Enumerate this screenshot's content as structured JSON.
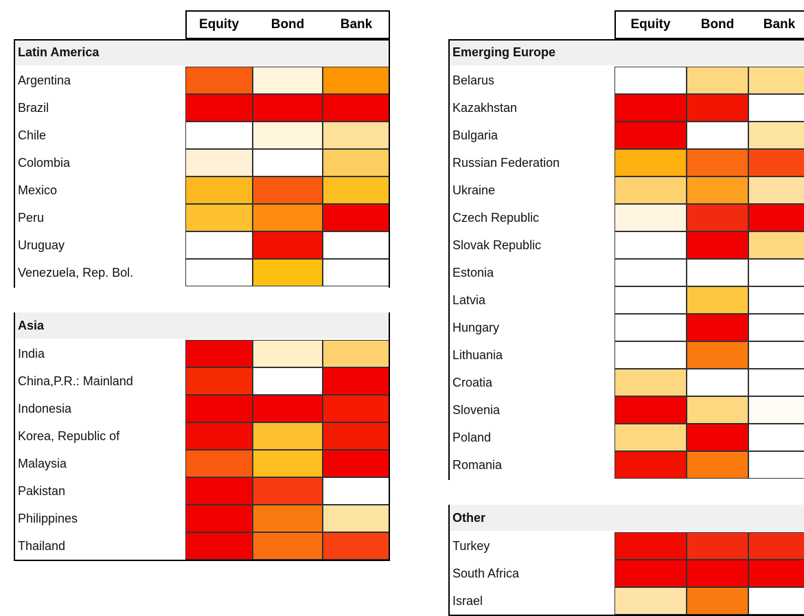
{
  "tables": [
    {
      "columns": [
        "Equity",
        "Bond",
        "Bank"
      ],
      "groups": [
        {
          "name": "Latin America",
          "rows": [
            {
              "label": "Argentina",
              "colors": [
                "#f95d10",
                "#fff4dc",
                "#fd9500"
              ]
            },
            {
              "label": "Brazil",
              "colors": [
                "#f20000",
                "#f20000",
                "#f20000"
              ]
            },
            {
              "label": "Chile",
              "colors": [
                "#ffffff",
                "#fff4dc",
                "#fde09a"
              ]
            },
            {
              "label": "Colombia",
              "colors": [
                "#fff0d8",
                "#ffffff",
                "#fdcd60"
              ]
            },
            {
              "label": "Mexico",
              "colors": [
                "#fdb820",
                "#f95a10",
                "#fdc020"
              ]
            },
            {
              "label": "Peru",
              "colors": [
                "#fdc030",
                "#fd8c10",
                "#f20000"
              ]
            },
            {
              "label": "Uruguay",
              "colors": [
                "#ffffff",
                "#f21000",
                "#ffffff"
              ]
            },
            {
              "label": "Venezuela, Rep. Bol.",
              "colors": [
                "#ffffff",
                "#fdc010",
                "#ffffff"
              ]
            }
          ]
        },
        {
          "name": "Asia",
          "rows": [
            {
              "label": "India",
              "colors": [
                "#f20000",
                "#fff0c8",
                "#fdd070"
              ]
            },
            {
              "label": "China,P.R.: Mainland",
              "colors": [
                "#f52a00",
                "#ffffff",
                "#f20000"
              ]
            },
            {
              "label": "Indonesia",
              "colors": [
                "#f20000",
                "#f20000",
                "#f51a00"
              ]
            },
            {
              "label": "Korea, Republic of",
              "colors": [
                "#f20a00",
                "#fdc030",
                "#f21a00"
              ]
            },
            {
              "label": "Malaysia",
              "colors": [
                "#f95a10",
                "#fdc020",
                "#f20000"
              ]
            },
            {
              "label": "Pakistan",
              "colors": [
                "#f20000",
                "#f83a10",
                "#ffffff"
              ]
            },
            {
              "label": "Philippines",
              "colors": [
                "#f20000",
                "#fa7a10",
                "#fde3a0"
              ]
            },
            {
              "label": "Thailand",
              "colors": [
                "#f20000",
                "#fa7010",
                "#f84010"
              ]
            }
          ]
        }
      ]
    },
    {
      "columns": [
        "Equity",
        "Bond",
        "Bank"
      ],
      "groups": [
        {
          "name": "Emerging Europe",
          "rows": [
            {
              "label": "Belarus",
              "colors": [
                "#ffffff",
                "#fdd880",
                "#fddc8a"
              ]
            },
            {
              "label": "Kazakhstan",
              "colors": [
                "#f20000",
                "#f21500",
                "#ffffff"
              ]
            },
            {
              "label": "Bulgaria",
              "colors": [
                "#f20000",
                "#ffffff",
                "#fde3a0"
              ]
            },
            {
              "label": "Russian Federation",
              "colors": [
                "#fdb010",
                "#fa6a10",
                "#f84a10"
              ]
            },
            {
              "label": "Ukraine",
              "colors": [
                "#fdd070",
                "#fda020",
                "#fde0a0"
              ]
            },
            {
              "label": "Czech Republic",
              "colors": [
                "#fff4e0",
                "#f22a10",
                "#f20000"
              ]
            },
            {
              "label": "Slovak Republic",
              "colors": [
                "#ffffff",
                "#f20000",
                "#fdd880"
              ]
            },
            {
              "label": "Estonia",
              "colors": [
                "#ffffff",
                "#ffffff",
                "#ffffff"
              ]
            },
            {
              "label": "Latvia",
              "colors": [
                "#ffffff",
                "#fdc840",
                "#ffffff"
              ]
            },
            {
              "label": "Hungary",
              "colors": [
                "#ffffff",
                "#f20000",
                "#ffffff"
              ]
            },
            {
              "label": "Lithuania",
              "colors": [
                "#ffffff",
                "#fa7a10",
                "#ffffff"
              ]
            },
            {
              "label": "Croatia",
              "colors": [
                "#fdd880",
                "#ffffff",
                "#ffffff"
              ]
            },
            {
              "label": "Slovenia",
              "colors": [
                "#f20000",
                "#fdd880",
                "#fffbf5"
              ]
            },
            {
              "label": "Poland",
              "colors": [
                "#fdd880",
                "#f20000",
                "#ffffff"
              ]
            },
            {
              "label": "Romania",
              "colors": [
                "#f21000",
                "#fa7a10",
                "#ffffff"
              ]
            }
          ]
        },
        {
          "name": "Other",
          "rows": [
            {
              "label": "Turkey",
              "colors": [
                "#f20a00",
                "#f22a10",
                "#f22a10"
              ]
            },
            {
              "label": "South Africa",
              "colors": [
                "#f20000",
                "#f20000",
                "#f20000"
              ]
            },
            {
              "label": "Israel",
              "colors": [
                "#fde3a8",
                "#fa7a10",
                "#ffffff"
              ]
            }
          ]
        }
      ]
    }
  ]
}
